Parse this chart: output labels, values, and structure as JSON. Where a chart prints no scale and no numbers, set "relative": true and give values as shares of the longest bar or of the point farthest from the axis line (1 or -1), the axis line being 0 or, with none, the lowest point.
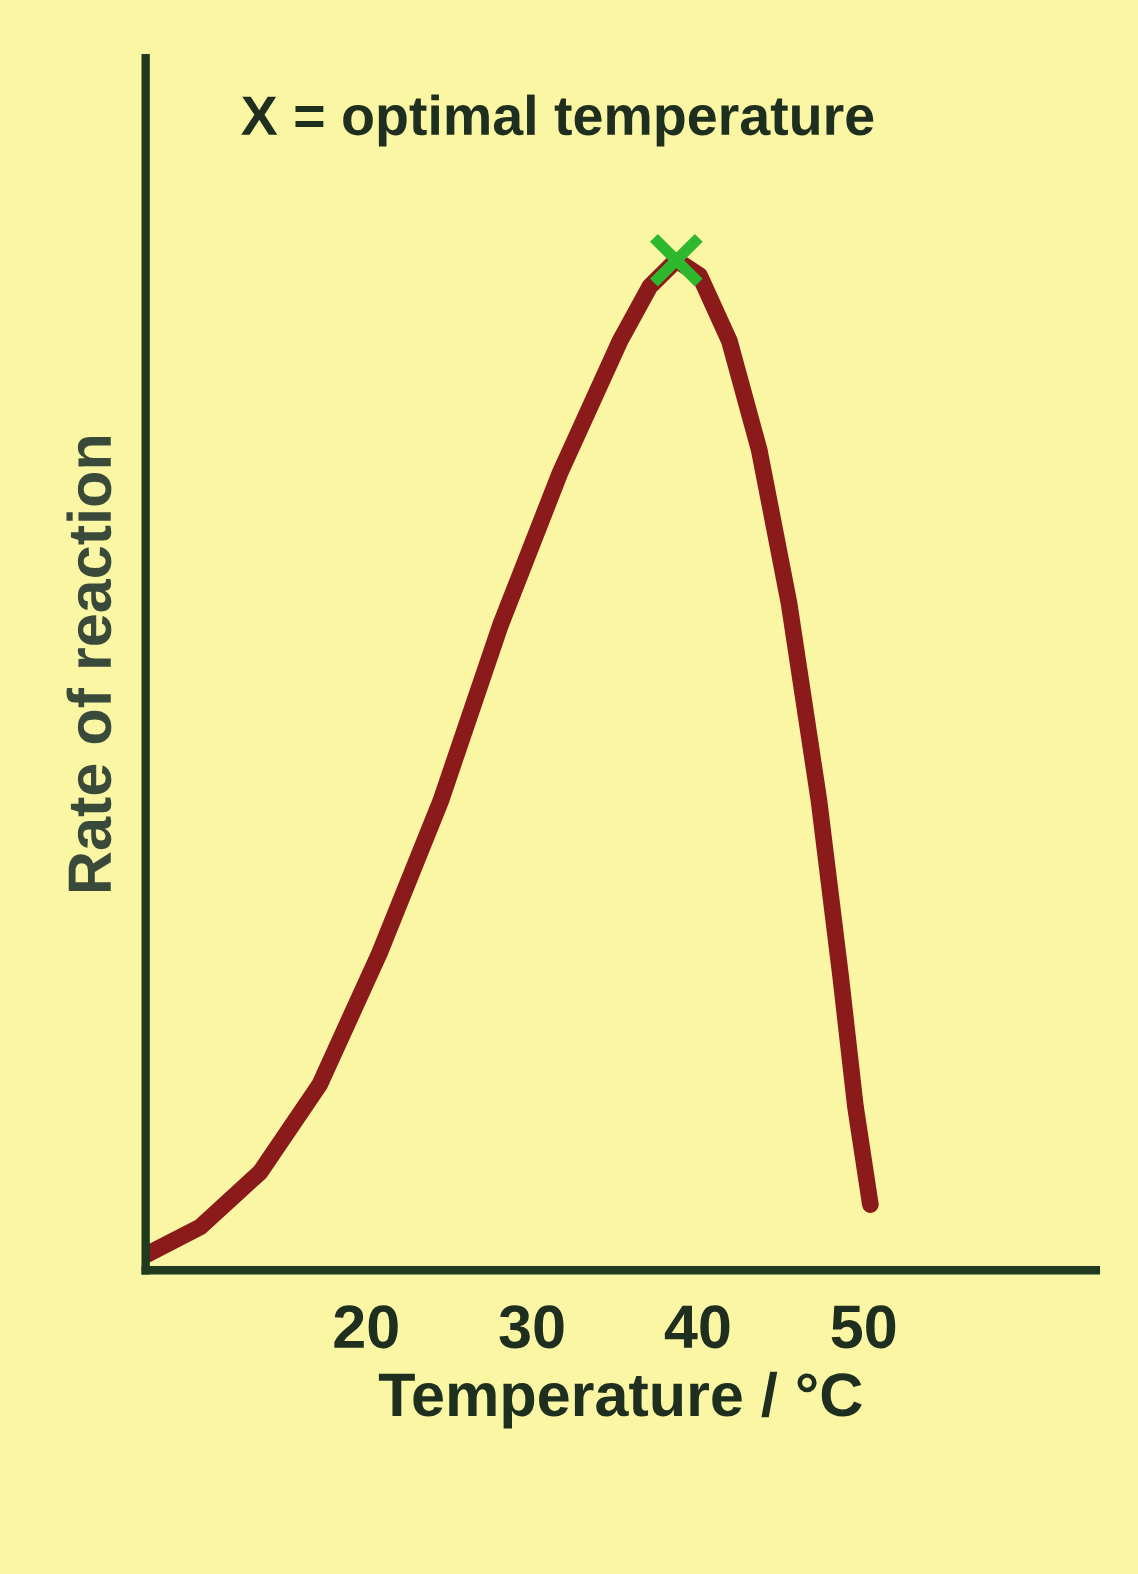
{
  "chart_data": {
    "type": "line",
    "xlabel": "Temperature / °C",
    "ylabel": "Rate of reaction",
    "relative": true,
    "xlim": [
      6.7,
      64
    ],
    "xticks": [
      20,
      30,
      40,
      50
    ],
    "series": [
      {
        "color": "#8b1a1a",
        "x": [
          6.7,
          10.0,
          13.6,
          17.2,
          20.8,
          24.5,
          28.1,
          31.7,
          35.3,
          37.1,
          38.7,
          40.1,
          41.9,
          43.7,
          45.5,
          47.3,
          48.6,
          49.5,
          50.4
        ],
        "values": [
          0.015,
          0.043,
          0.097,
          0.184,
          0.314,
          0.465,
          0.639,
          0.79,
          0.92,
          0.974,
          1,
          0.985,
          0.92,
          0.812,
          0.66,
          0.465,
          0.292,
          0.162,
          0.065
        ]
      },
      {
        "type": "scatter",
        "color": "#2db82d",
        "marker": "cross",
        "x": [
          38.7
        ],
        "values": [
          1
        ]
      }
    ],
    "annotations": [
      "X = optimal temperature"
    ],
    "grid": false,
    "legend": false
  }
}
